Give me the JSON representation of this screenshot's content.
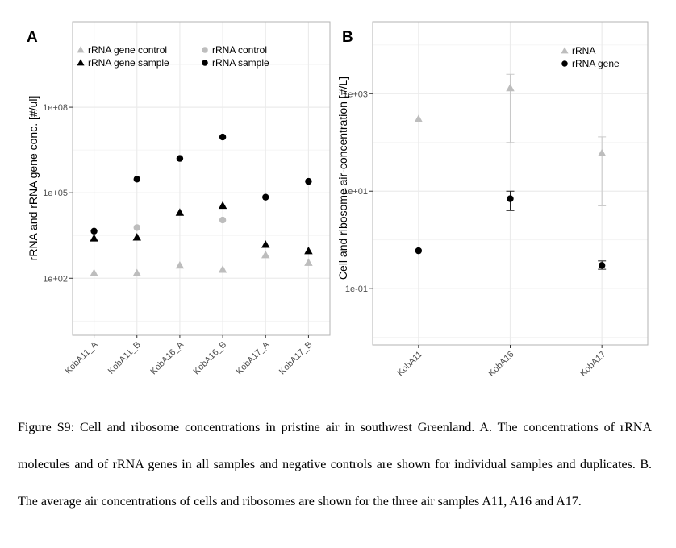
{
  "caption": "Figure S9: Cell and ribosome concentrations in pristine air in southwest Greenland. A. The concentrations of rRNA molecules and of rRNA genes in all samples and negative controls are shown for individual samples and duplicates. B. The average air concentrations of cells and ribosomes are shown for the three air samples A11, A16 and A17.",
  "colors": {
    "grey": "#bdbdbd",
    "black": "#000000",
    "grid": "#ebebeb",
    "panel_border": "#b3b3b3"
  },
  "chart_data": [
    {
      "panel_label": "A",
      "type": "scatter",
      "scale": "log10",
      "categories": [
        "KobA11_A",
        "KobA11_B",
        "KobA16_A",
        "KobA16_B",
        "KobA17_A",
        "KobA17_B"
      ],
      "ylabel": "rRNA and rRNA gene conc. [#/ul]",
      "ylim": [
        1,
        100000000000
      ],
      "yticks": [
        100,
        100000,
        100000000
      ],
      "ytick_labels": [
        "1e+02",
        "1e+05",
        "1e+08"
      ],
      "grid": true,
      "legend_position": "top",
      "series": [
        {
          "name": "rRNA gene control",
          "marker": "triangle",
          "color": "#bdbdbd",
          "values": [
            150,
            150,
            280,
            200,
            650,
            350
          ]
        },
        {
          "name": "rRNA gene sample",
          "marker": "triangle",
          "color": "#000000",
          "values": [
            2500,
            2700,
            20000,
            35000,
            1500,
            900
          ]
        },
        {
          "name": "rRNA control",
          "marker": "circle",
          "color": "#bdbdbd",
          "values": [
            null,
            6000,
            null,
            11000,
            null,
            null
          ]
        },
        {
          "name": "rRNA sample",
          "marker": "circle",
          "color": "#000000",
          "values": [
            4500,
            300000,
            1600000,
            9000000,
            70000,
            250000
          ]
        }
      ]
    },
    {
      "panel_label": "B",
      "type": "scatter",
      "scale": "log10",
      "categories": [
        "KobA11",
        "KobA16",
        "KobA17"
      ],
      "ylabel": "Cell and ribosome air-concentration [#/L]",
      "ylim": [
        0.007,
        30000
      ],
      "yticks": [
        0.1,
        10,
        1000
      ],
      "ytick_labels": [
        "1e-01",
        "1e+01",
        "1e+03"
      ],
      "grid": true,
      "legend_position": "top-right",
      "series": [
        {
          "name": "rRNA",
          "marker": "triangle",
          "color": "#bdbdbd",
          "values": [
            300,
            1300,
            60
          ],
          "error_low": [
            null,
            100,
            5
          ],
          "error_high": [
            null,
            2500,
            130
          ]
        },
        {
          "name": "rRNA gene",
          "marker": "circle",
          "color": "#000000",
          "values": [
            0.6,
            7,
            0.3
          ],
          "error_low": [
            null,
            4,
            0.25
          ],
          "error_high": [
            null,
            10,
            0.37
          ]
        }
      ]
    }
  ]
}
